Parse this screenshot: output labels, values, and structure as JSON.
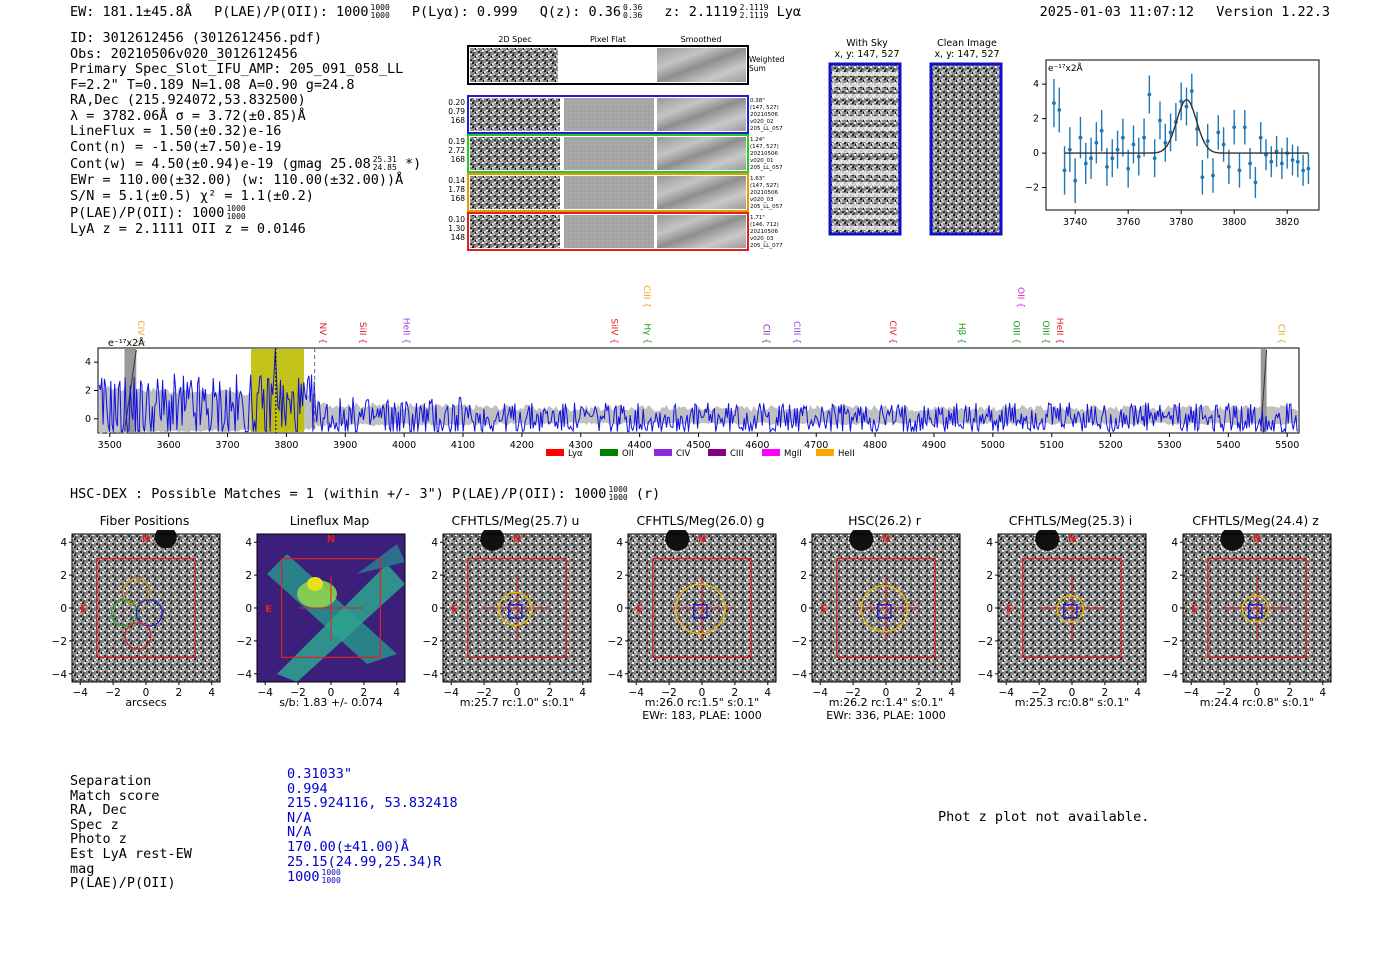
{
  "header": {
    "ew": "EW: 181.1±45.8Å",
    "plae_label": "P(LAE)/P(OII): 1000",
    "plae_hi": "1000",
    "plae_lo": "1000",
    "plya": "P(Lyα): 0.999",
    "qz_label": "Q(z): 0.36",
    "qz_hi": "0.36",
    "qz_lo": "0.36",
    "z_label": "z: 2.1119",
    "z_hi": "2.1119",
    "z_lo": "2.1119",
    "z_line": "Lyα",
    "datetime": "2025-01-03 11:07:12",
    "version": "Version 1.22.3"
  },
  "info": {
    "id": "ID: 3012612456 (3012612456.pdf)",
    "obs": "Obs: 20210506v020_3012612456",
    "primary": "Primary Spec_Slot_IFU_AMP: 205_091_058_LL",
    "fparams": "F=2.2\"  T=0.189  N=1.08  A=0.90  g=24.8",
    "radec": "RA,Dec (215.924072,53.832500)",
    "lambda_sigma": "λ = 3782.06Å  σ = 3.72(±0.85)Å",
    "lineflux": "LineFlux = 1.50(±0.32)e-16",
    "contn": "Cont(n) = -1.50(±7.50)e-19",
    "contw": "Cont(w) = 4.50(±0.94)e-19 (gmag 25.08",
    "contw_hi": "25.31",
    "contw_lo": "24.85",
    "contw_end": "*)",
    "ewr": "EWr = 110.00(±32.00) (w: 110.00(±32.00))Å",
    "sn": "S/N = 5.1(±0.5)  χ² = 1.1(±0.2)",
    "plae": "P(LAE)/P(OII): 1000",
    "plae_hi": "1000",
    "plae_lo": "1000",
    "lya_z": "LyA z = 2.1111  OII z = 0.0146"
  },
  "spec2d": {
    "col_titles": [
      "2D Spec",
      "Pixel Flat",
      "Smoothed"
    ],
    "weighted": "Weighted Sum",
    "rows": [
      {
        "vals": [
          "0.20",
          "0.79",
          "168"
        ],
        "notes": [
          "0.38\"",
          "(147, 527)",
          "20210506",
          "v020_02",
          "205_LL_057"
        ],
        "color": "#1f1fd6"
      },
      {
        "vals": [
          "0.19",
          "2.72",
          "168"
        ],
        "notes": [
          "1.24\"",
          "(147, 527)",
          "20210506",
          "v020_01",
          "205_LL_057"
        ],
        "color": "#22cc22"
      },
      {
        "vals": [
          "0.14",
          "1.78",
          "168"
        ],
        "notes": [
          "1.63\"",
          "(147, 527)",
          "20210506",
          "v020_03",
          "205_LL_057"
        ],
        "color": "#e69a00"
      },
      {
        "vals": [
          "0.10",
          "1.30",
          "148"
        ],
        "notes": [
          "1.71\"",
          "(146, 712)",
          "20210506",
          "v020_03",
          "205_LL_077"
        ],
        "color": "#e02020"
      }
    ]
  },
  "sky": {
    "with_sky": "With Sky",
    "with_sky_xy": "x, y: 147, 527",
    "clean": "Clean Image",
    "clean_xy": "x, y: 147, 527"
  },
  "line_fit": {
    "ylabel": "e⁻¹⁷x2Å",
    "xticks": [
      "3740",
      "3760",
      "3780",
      "3800",
      "3820"
    ],
    "yticks": [
      "4",
      "2",
      "0",
      "−2"
    ]
  },
  "chart_data": [
    {
      "type": "scatter",
      "title": "",
      "xlabel": "",
      "ylabel": "e⁻¹⁷x2Å",
      "xlim": [
        3729,
        3832
      ],
      "ylim": [
        -3.3,
        5.4
      ],
      "x": [
        3732,
        3734,
        3736,
        3738,
        3740,
        3742,
        3744,
        3746,
        3748,
        3750,
        3752,
        3754,
        3756,
        3758,
        3760,
        3762,
        3764,
        3766,
        3768,
        3770,
        3772,
        3774,
        3776,
        3778,
        3780,
        3782,
        3784,
        3786,
        3788,
        3790,
        3792,
        3794,
        3796,
        3798,
        3800,
        3802,
        3804,
        3806,
        3808,
        3810,
        3812,
        3814,
        3816,
        3818,
        3820,
        3822,
        3824,
        3826,
        3828
      ],
      "y": [
        2.9,
        2.5,
        -1.0,
        0.2,
        -1.6,
        0.9,
        -0.6,
        -0.3,
        0.6,
        1.3,
        -0.8,
        -0.3,
        0.2,
        0.9,
        -0.9,
        0.5,
        -0.2,
        0.9,
        3.4,
        -0.3,
        1.9,
        0.6,
        1.2,
        1.8,
        3.0,
        2.7,
        3.6,
        1.4,
        -1.4,
        0.7,
        -1.3,
        1.2,
        0.5,
        -0.8,
        1.5,
        -1.0,
        1.5,
        -0.6,
        -1.7,
        0.9,
        -0.1,
        -0.5,
        0.1,
        -0.6,
        0.0,
        -0.4,
        -0.5,
        -1.0,
        -0.9
      ],
      "err": [
        1.4,
        1.3,
        1.4,
        1.3,
        1.3,
        1.2,
        1.2,
        1.2,
        1.2,
        1.2,
        1.1,
        1.1,
        1.1,
        1.1,
        1.1,
        1.1,
        1.1,
        1.1,
        1.1,
        1.1,
        1.1,
        1.1,
        1.1,
        1.1,
        1.1,
        1.1,
        1.0,
        1.0,
        1.0,
        1.0,
        1.0,
        1.0,
        1.0,
        1.0,
        1.0,
        1.0,
        1.0,
        0.9,
        0.9,
        0.9,
        0.9,
        0.9,
        0.9,
        0.9,
        0.9,
        0.9,
        0.9,
        0.9,
        0.9
      ],
      "model": {
        "center": 3782.06,
        "sigma": 3.72,
        "amplitude": 3.1
      },
      "xticks": [
        3740,
        3760,
        3780,
        3800,
        3820
      ],
      "yticks": [
        4,
        2,
        0,
        -2
      ]
    },
    {
      "type": "line",
      "title": "",
      "ylabel": "e⁻¹⁷x2Å",
      "xlim": [
        3480,
        5520
      ],
      "ylim": [
        -1.0,
        5.0
      ],
      "xticks": [
        3500,
        3600,
        3700,
        3800,
        3900,
        4000,
        4100,
        4200,
        4300,
        4400,
        4500,
        4600,
        4700,
        4800,
        4900,
        5000,
        5100,
        5200,
        5300,
        5400,
        5500
      ],
      "yticks": [
        4,
        2,
        0
      ],
      "detected_line": 3782.06,
      "highlight_band": [
        3740,
        3830
      ],
      "masked_bands": [
        [
          3525,
          3545
        ],
        [
          5455,
          5465
        ]
      ],
      "dashed_line": 3848,
      "line_markers": [
        {
          "label": "CIV",
          "wavelength": 3543,
          "color": "#f0a020",
          "row": 1
        },
        {
          "label": "NV",
          "wavelength": 3852,
          "color": "#e02020",
          "row": 1
        },
        {
          "label": "SiII",
          "wavelength": 3920,
          "color": "#e02020",
          "row": 1
        },
        {
          "label": "HeII",
          "wavelength": 3994,
          "color": "#9b3fe6",
          "row": 1
        },
        {
          "label": "SiIV",
          "wavelength": 4347,
          "color": "#e02020",
          "row": 1
        },
        {
          "label": "CIII",
          "wavelength": 4402,
          "color": "#f0a020",
          "row": 0
        },
        {
          "label": "Hγ",
          "wavelength": 4403,
          "color": "#1a9a1a",
          "row": 1
        },
        {
          "label": "CII",
          "wavelength": 4605,
          "color": "#8b2bb0",
          "row": 1
        },
        {
          "label": "CIII",
          "wavelength": 4657,
          "color": "#9b3fe6",
          "row": 1
        },
        {
          "label": "CIV",
          "wavelength": 4820,
          "color": "#e02020",
          "row": 1
        },
        {
          "label": "Hβ",
          "wavelength": 4937,
          "color": "#1a9a1a",
          "row": 1
        },
        {
          "label": "OII",
          "wavelength": 5038,
          "color": "#e020e0",
          "row": 0
        },
        {
          "label": "OIII",
          "wavelength": 5030,
          "color": "#1a9a1a",
          "row": 1
        },
        {
          "label": "OIII",
          "wavelength": 5080,
          "color": "#1a9a1a",
          "row": 1
        },
        {
          "label": "HeII",
          "wavelength": 5104,
          "color": "#e02020",
          "row": 1
        },
        {
          "label": "CII",
          "wavelength": 5480,
          "color": "#f0a020",
          "row": 1
        }
      ]
    }
  ],
  "legend": [
    {
      "label": "Lyα",
      "color": "#ff0000"
    },
    {
      "label": "OII",
      "color": "#008000"
    },
    {
      "label": "CIV",
      "color": "#8a2be2"
    },
    {
      "label": "CIII",
      "color": "#800080"
    },
    {
      "label": "MgII",
      "color": "#ff00ff"
    },
    {
      "label": "HeII",
      "color": "#ffa500"
    }
  ],
  "matches": {
    "heading": "HSC-DEX : Possible Matches = 1 (within +/- 3\")  P(LAE)/P(OII): 1000",
    "heading_hi": "1000",
    "heading_lo": "1000",
    "heading_end": "(r)"
  },
  "cutouts": [
    {
      "title": "Fiber Positions",
      "sub1": "arcsecs",
      "sub2": "",
      "kind": "fiber"
    },
    {
      "title": "Lineflux Map",
      "sub1": "s/b: 1.83 +/- 0.074",
      "sub2": "",
      "kind": "lineflux"
    },
    {
      "title": "CFHTLS/Meg(25.7) u",
      "sub1": "m:25.7 rc:1.0\"  s:0.1\"",
      "sub2": "",
      "kind": "u",
      "circle_r": 1.0
    },
    {
      "title": "CFHTLS/Meg(26.0) g",
      "sub1": "m:26.0 rc:1.5\"  s:0.1\"",
      "sub2": "EWr: 183, PLAE: 1000",
      "kind": "g",
      "circle_r": 1.5
    },
    {
      "title": "HSC(26.2) r",
      "sub1": "m:26.2 rc:1.4\"  s:0.1\"",
      "sub2": "EWr: 336, PLAE: 1000",
      "kind": "r",
      "circle_r": 1.4
    },
    {
      "title": "CFHTLS/Meg(25.3) i",
      "sub1": "m:25.3 rc:0.8\"  s:0.1\"",
      "sub2": "",
      "kind": "i",
      "circle_r": 0.8
    },
    {
      "title": "CFHTLS/Meg(24.4) z",
      "sub1": "m:24.4 rc:0.8\"  s:0.1\"",
      "sub2": "",
      "kind": "z",
      "circle_r": 0.8
    }
  ],
  "cutout_axes": {
    "xticks": [
      "−4",
      "−2",
      "0",
      "2",
      "4"
    ],
    "yticks": [
      "4",
      "2",
      "0",
      "−2",
      "−4"
    ],
    "north": "N",
    "east": "E"
  },
  "match_table": {
    "keys": [
      "Separation",
      "Match score",
      "RA, Dec",
      "Spec z",
      "Photo z",
      "Est LyA rest-EW",
      "mag",
      "P(LAE)/P(OII)"
    ],
    "values": [
      "0.31033\"",
      "0.994",
      "215.924116, 53.832418",
      "N/A",
      "N/A",
      "170.00(±41.00)Å",
      "25.15(24.99,25.34)R",
      "1000"
    ],
    "plae_hi": "1000",
    "plae_lo": "1000"
  },
  "photz_msg": "Phot z plot not available."
}
